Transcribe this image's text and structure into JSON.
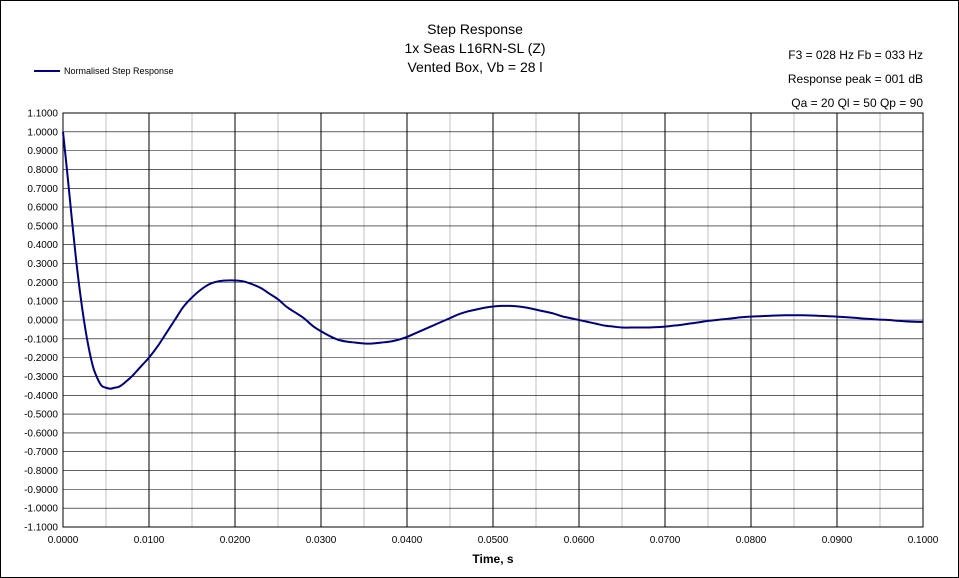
{
  "chart_data": {
    "type": "line",
    "title": [
      "Step Response",
      "1x Seas L16RN-SL (Z)",
      "Vented Box, Vb = 28 l"
    ],
    "parameters": [
      "F3 = 028 Hz  Fb = 033 Hz",
      "Response peak = 001 dB",
      "Qa = 20  Ql = 50  Qp = 90"
    ],
    "xlabel": "Time, s",
    "ylabel": "",
    "xlim": [
      0,
      0.1
    ],
    "ylim": [
      -1.1,
      1.1
    ],
    "x_ticks": [
      "0.0000",
      "0.0100",
      "0.0200",
      "0.0300",
      "0.0400",
      "0.0500",
      "0.0600",
      "0.0700",
      "0.0800",
      "0.0900",
      "0.1000"
    ],
    "y_ticks": [
      "1.1000",
      "1.0000",
      "0.9000",
      "0.8000",
      "0.7000",
      "0.6000",
      "0.5000",
      "0.4000",
      "0.3000",
      "0.2000",
      "0.1000",
      "0.0000",
      "-0.1000",
      "-0.2000",
      "-0.3000",
      "-0.4000",
      "-0.5000",
      "-0.6000",
      "-0.7000",
      "-0.8000",
      "-0.9000",
      "-1.0000",
      "-1.1000"
    ],
    "grid": true,
    "legend_position": "top-left",
    "series": [
      {
        "name": "Normalised Step Response",
        "color": "#000080",
        "x": [
          0,
          0.0005,
          0.001,
          0.0015,
          0.002,
          0.0025,
          0.003,
          0.0035,
          0.004,
          0.0045,
          0.005,
          0.0055,
          0.006,
          0.0065,
          0.007,
          0.0075,
          0.008,
          0.009,
          0.01,
          0.011,
          0.012,
          0.013,
          0.014,
          0.015,
          0.016,
          0.017,
          0.018,
          0.019,
          0.02,
          0.021,
          0.022,
          0.023,
          0.024,
          0.025,
          0.026,
          0.027,
          0.028,
          0.029,
          0.03,
          0.031,
          0.032,
          0.033,
          0.034,
          0.035,
          0.036,
          0.037,
          0.038,
          0.039,
          0.04,
          0.041,
          0.042,
          0.043,
          0.044,
          0.045,
          0.046,
          0.047,
          0.048,
          0.049,
          0.05,
          0.051,
          0.052,
          0.053,
          0.054,
          0.055,
          0.056,
          0.057,
          0.058,
          0.059,
          0.06,
          0.061,
          0.062,
          0.063,
          0.064,
          0.065,
          0.066,
          0.067,
          0.068,
          0.069,
          0.07,
          0.071,
          0.072,
          0.073,
          0.074,
          0.075,
          0.076,
          0.077,
          0.078,
          0.079,
          0.08,
          0.081,
          0.082,
          0.083,
          0.084,
          0.085,
          0.086,
          0.087,
          0.088,
          0.089,
          0.09,
          0.091,
          0.092,
          0.093,
          0.094,
          0.095,
          0.096,
          0.097,
          0.098,
          0.099,
          0.1
        ],
        "y": [
          1.0,
          0.78,
          0.55,
          0.33,
          0.14,
          -0.02,
          -0.15,
          -0.25,
          -0.31,
          -0.35,
          -0.36,
          -0.365,
          -0.36,
          -0.355,
          -0.34,
          -0.32,
          -0.3,
          -0.25,
          -0.2,
          -0.14,
          -0.07,
          0.0,
          0.07,
          0.12,
          0.16,
          0.19,
          0.205,
          0.21,
          0.21,
          0.205,
          0.19,
          0.17,
          0.14,
          0.11,
          0.07,
          0.04,
          0.01,
          -0.03,
          -0.06,
          -0.085,
          -0.105,
          -0.115,
          -0.12,
          -0.125,
          -0.125,
          -0.12,
          -0.115,
          -0.105,
          -0.09,
          -0.07,
          -0.05,
          -0.03,
          -0.01,
          0.01,
          0.03,
          0.045,
          0.055,
          0.065,
          0.072,
          0.075,
          0.075,
          0.072,
          0.065,
          0.055,
          0.045,
          0.035,
          0.02,
          0.01,
          0.0,
          -0.01,
          -0.02,
          -0.03,
          -0.035,
          -0.04,
          -0.04,
          -0.04,
          -0.04,
          -0.038,
          -0.035,
          -0.03,
          -0.025,
          -0.018,
          -0.012,
          -0.005,
          0.0,
          0.005,
          0.01,
          0.015,
          0.018,
          0.02,
          0.022,
          0.024,
          0.025,
          0.025,
          0.025,
          0.024,
          0.022,
          0.02,
          0.018,
          0.015,
          0.012,
          0.008,
          0.005,
          0.002,
          0.0,
          -0.004,
          -0.007,
          -0.009,
          -0.01
        ]
      }
    ]
  }
}
